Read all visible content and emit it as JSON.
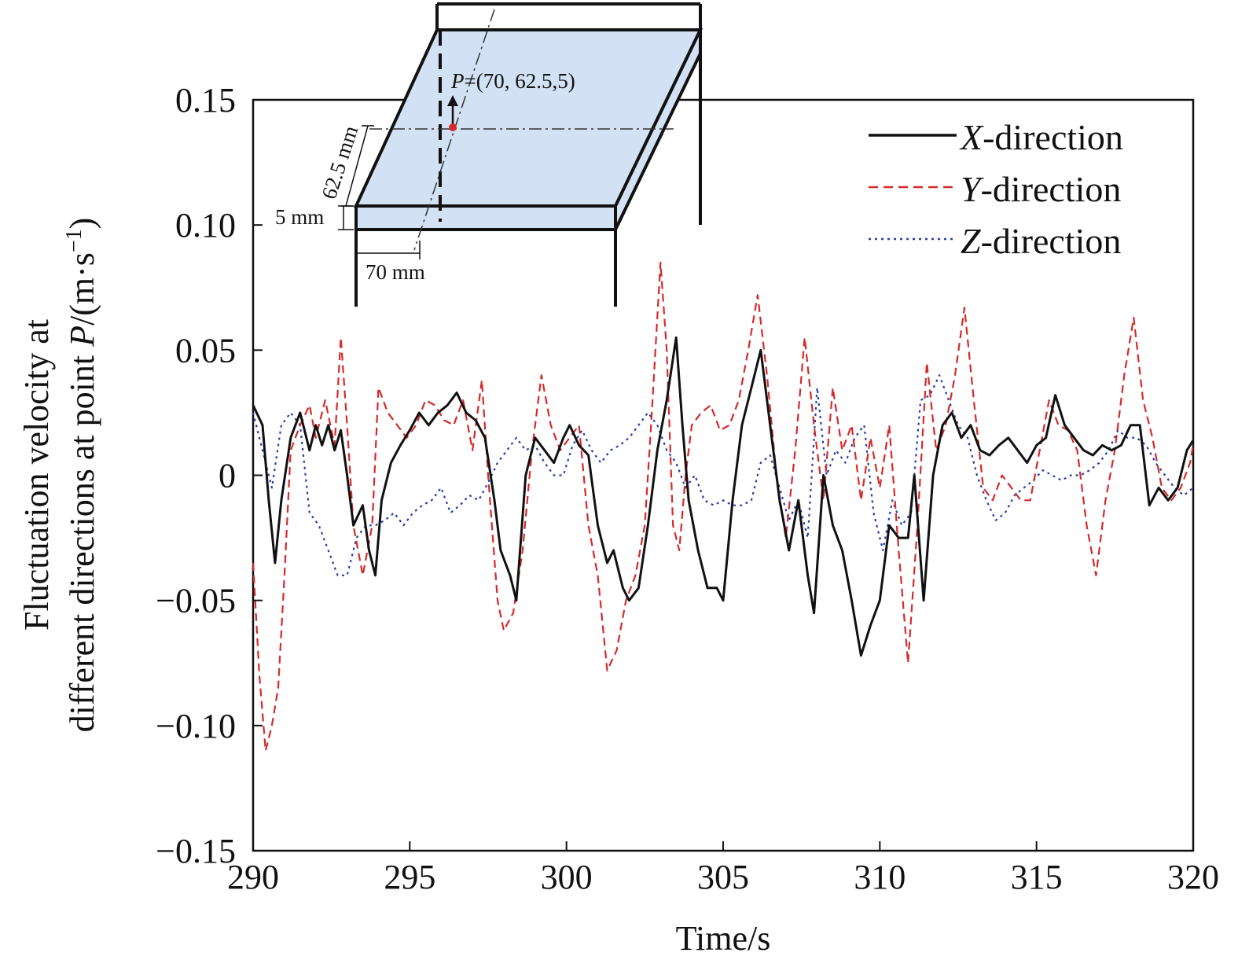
{
  "chart_data": {
    "type": "line",
    "title": "",
    "xlabel": "Time/s",
    "ylabel_line1": "Fluctuation velocity at",
    "ylabel_line2_prefix": "different directions at point ",
    "ylabel_line2_var": "P",
    "ylabel_line2_unit": "/(m·s",
    "ylabel_line2_exp": "−1",
    "ylabel_line2_close": ")",
    "xlim": [
      290,
      320
    ],
    "ylim": [
      -0.15,
      0.15
    ],
    "xticks": [
      290,
      295,
      300,
      305,
      310,
      315,
      320
    ],
    "yticks": [
      -0.15,
      -0.1,
      -0.05,
      0,
      0.05,
      0.1,
      0.15
    ],
    "ytick_labels": [
      "−0.15",
      "−0.10",
      "−0.05",
      "0",
      "0.05",
      "0.10",
      "0.15"
    ],
    "grid": false,
    "legend_position": "top-right",
    "series": [
      {
        "name_var": "X",
        "name_rest": "-direction",
        "color": "#111111",
        "style": "solid",
        "x": [
          290.0,
          290.3,
          290.5,
          290.7,
          290.9,
          291.2,
          291.5,
          291.8,
          292.0,
          292.2,
          292.4,
          292.6,
          292.8,
          293.0,
          293.2,
          293.5,
          293.7,
          293.9,
          294.1,
          294.4,
          294.7,
          295.0,
          295.3,
          295.6,
          295.9,
          296.2,
          296.5,
          296.8,
          297.1,
          297.4,
          297.7,
          297.9,
          298.2,
          298.4,
          298.7,
          299.0,
          299.3,
          299.6,
          299.9,
          300.1,
          300.4,
          300.7,
          301.0,
          301.3,
          301.5,
          301.8,
          302.0,
          302.3,
          302.6,
          302.9,
          303.2,
          303.5,
          303.7,
          303.9,
          304.2,
          304.5,
          304.8,
          305.0,
          305.3,
          305.6,
          305.9,
          306.2,
          306.5,
          306.8,
          307.1,
          307.4,
          307.7,
          307.9,
          308.2,
          308.5,
          308.8,
          309.1,
          309.4,
          309.7,
          310.0,
          310.3,
          310.6,
          310.9,
          311.1,
          311.4,
          311.7,
          312.0,
          312.3,
          312.6,
          312.9,
          313.2,
          313.5,
          313.8,
          314.1,
          314.4,
          314.7,
          315.0,
          315.3,
          315.6,
          315.9,
          316.2,
          316.5,
          316.8,
          317.1,
          317.4,
          317.7,
          318.0,
          318.3,
          318.6,
          318.9,
          319.2,
          319.5,
          319.8,
          320.0
        ],
        "y": [
          0.028,
          0.02,
          -0.01,
          -0.035,
          -0.01,
          0.015,
          0.025,
          0.01,
          0.02,
          0.012,
          0.02,
          0.01,
          0.018,
          0.0,
          -0.02,
          -0.012,
          -0.03,
          -0.04,
          -0.01,
          0.005,
          0.012,
          0.018,
          0.025,
          0.02,
          0.025,
          0.028,
          0.033,
          0.025,
          0.022,
          0.015,
          -0.01,
          -0.03,
          -0.04,
          -0.05,
          0.0,
          0.015,
          0.01,
          0.005,
          0.015,
          0.02,
          0.012,
          0.008,
          -0.02,
          -0.035,
          -0.03,
          -0.045,
          -0.05,
          -0.045,
          -0.02,
          0.01,
          0.03,
          0.055,
          0.02,
          -0.01,
          -0.03,
          -0.045,
          -0.045,
          -0.05,
          -0.01,
          0.02,
          0.035,
          0.05,
          0.02,
          -0.01,
          -0.03,
          -0.01,
          -0.04,
          -0.055,
          0.0,
          -0.02,
          -0.03,
          -0.05,
          -0.072,
          -0.06,
          -0.05,
          -0.02,
          -0.025,
          -0.025,
          0.0,
          -0.05,
          0.0,
          0.02,
          0.025,
          0.015,
          0.02,
          0.01,
          0.008,
          0.012,
          0.015,
          0.01,
          0.005,
          0.012,
          0.015,
          0.032,
          0.02,
          0.015,
          0.01,
          0.008,
          0.012,
          0.01,
          0.012,
          0.02,
          0.02,
          -0.012,
          -0.005,
          -0.01,
          -0.005,
          0.01,
          0.014
        ]
      },
      {
        "name_var": "Y",
        "name_rest": "-direction",
        "color": "#d62a2a",
        "style": "dashed",
        "x": [
          290.0,
          290.2,
          290.4,
          290.6,
          290.8,
          291.0,
          291.2,
          291.5,
          291.8,
          292.0,
          292.3,
          292.6,
          292.8,
          293.0,
          293.2,
          293.5,
          293.8,
          294.0,
          294.3,
          294.6,
          294.9,
          295.2,
          295.5,
          295.8,
          296.1,
          296.4,
          296.7,
          297.0,
          297.3,
          297.5,
          297.8,
          298.0,
          298.3,
          298.6,
          298.9,
          299.2,
          299.5,
          299.8,
          300.1,
          300.4,
          300.7,
          301.0,
          301.3,
          301.6,
          301.9,
          302.2,
          302.5,
          302.7,
          303.0,
          303.2,
          303.4,
          303.6,
          303.8,
          304.0,
          304.3,
          304.6,
          304.9,
          305.2,
          305.5,
          305.8,
          306.1,
          306.4,
          306.7,
          307.0,
          307.3,
          307.6,
          307.9,
          308.2,
          308.5,
          308.8,
          309.1,
          309.4,
          309.7,
          310.0,
          310.3,
          310.6,
          310.9,
          311.2,
          311.5,
          311.8,
          312.1,
          312.4,
          312.7,
          313.0,
          313.3,
          313.6,
          313.9,
          314.2,
          314.5,
          314.8,
          315.1,
          315.4,
          315.7,
          316.0,
          316.3,
          316.6,
          316.9,
          317.2,
          317.5,
          317.8,
          318.1,
          318.4,
          318.7,
          319.0,
          319.3,
          319.6,
          319.9,
          320.0
        ],
        "y": [
          -0.035,
          -0.08,
          -0.11,
          -0.1,
          -0.085,
          -0.04,
          0.01,
          0.02,
          0.028,
          0.015,
          0.03,
          0.012,
          0.055,
          0.02,
          -0.02,
          -0.04,
          -0.02,
          0.035,
          0.025,
          0.02,
          0.015,
          0.02,
          0.03,
          0.028,
          0.022,
          0.02,
          0.03,
          0.01,
          0.038,
          0.0,
          -0.05,
          -0.062,
          -0.055,
          -0.03,
          0.01,
          0.04,
          0.02,
          0.01,
          0.015,
          0.02,
          -0.02,
          -0.04,
          -0.078,
          -0.07,
          -0.05,
          -0.04,
          -0.02,
          0.02,
          0.085,
          0.05,
          -0.02,
          -0.03,
          0.0,
          0.02,
          0.025,
          0.028,
          0.018,
          0.02,
          0.03,
          0.05,
          0.072,
          0.04,
          0.0,
          -0.025,
          0.01,
          0.055,
          0.02,
          -0.01,
          0.035,
          0.01,
          0.02,
          -0.01,
          0.015,
          -0.005,
          0.02,
          -0.03,
          -0.075,
          -0.02,
          0.045,
          0.01,
          0.02,
          0.04,
          0.067,
          0.03,
          -0.005,
          -0.01,
          0.0,
          -0.005,
          -0.01,
          -0.01,
          0.01,
          0.03,
          0.02,
          0.018,
          0.01,
          -0.02,
          -0.04,
          -0.01,
          0.01,
          0.04,
          0.063,
          0.03,
          0.015,
          -0.005,
          -0.01,
          -0.005,
          0.005,
          0.012
        ]
      },
      {
        "name_var": "Z",
        "name_rest": "-direction",
        "color": "#2a3fa8",
        "style": "dotted",
        "x": [
          290.0,
          290.3,
          290.6,
          290.9,
          291.2,
          291.5,
          291.8,
          292.1,
          292.4,
          292.7,
          293.0,
          293.3,
          293.6,
          293.9,
          294.2,
          294.5,
          294.8,
          295.1,
          295.4,
          295.7,
          296.0,
          296.3,
          296.6,
          296.9,
          297.2,
          297.5,
          297.8,
          298.1,
          298.4,
          298.7,
          299.0,
          299.3,
          299.6,
          299.9,
          300.2,
          300.5,
          300.8,
          301.1,
          301.4,
          301.7,
          302.0,
          302.3,
          302.6,
          302.9,
          303.2,
          303.5,
          303.8,
          304.1,
          304.4,
          304.7,
          305.0,
          305.3,
          305.6,
          305.9,
          306.2,
          306.5,
          306.8,
          307.1,
          307.4,
          307.7,
          308.0,
          308.3,
          308.6,
          308.9,
          309.2,
          309.5,
          309.8,
          310.1,
          310.4,
          310.7,
          311.0,
          311.3,
          311.6,
          311.9,
          312.2,
          312.5,
          312.8,
          313.1,
          313.4,
          313.7,
          314.0,
          314.3,
          314.6,
          314.9,
          315.2,
          315.5,
          315.8,
          316.1,
          316.4,
          316.7,
          317.0,
          317.3,
          317.6,
          317.9,
          318.2,
          318.5,
          318.8,
          319.1,
          319.4,
          319.7,
          320.0
        ],
        "y": [
          0.025,
          0.01,
          -0.005,
          0.02,
          0.025,
          0.02,
          -0.015,
          -0.02,
          -0.03,
          -0.04,
          -0.04,
          -0.025,
          -0.02,
          -0.02,
          -0.018,
          -0.015,
          -0.02,
          -0.015,
          -0.012,
          -0.01,
          -0.005,
          -0.015,
          -0.012,
          -0.008,
          -0.01,
          -0.003,
          0.005,
          0.01,
          0.015,
          0.01,
          0.012,
          0.005,
          0.0,
          0.0,
          0.012,
          0.018,
          0.01,
          0.005,
          0.01,
          0.012,
          0.015,
          0.02,
          0.025,
          0.02,
          0.01,
          0.005,
          -0.005,
          0.0,
          -0.01,
          -0.012,
          -0.01,
          -0.012,
          -0.012,
          -0.01,
          0.005,
          0.008,
          -0.005,
          -0.018,
          -0.01,
          -0.025,
          0.035,
          0.0,
          0.01,
          0.005,
          0.015,
          0.02,
          -0.015,
          -0.03,
          -0.01,
          -0.02,
          -0.015,
          0.03,
          0.032,
          0.04,
          0.03,
          0.02,
          0.015,
          0.0,
          -0.01,
          -0.018,
          -0.015,
          -0.008,
          -0.005,
          -0.002,
          0.002,
          0.0,
          -0.002,
          0.0,
          0.0,
          0.002,
          0.005,
          0.01,
          0.018,
          0.015,
          0.015,
          0.012,
          0.005,
          0.0,
          -0.005,
          -0.008,
          -0.005
        ]
      }
    ],
    "inset": {
      "point_label_var": "P",
      "point_label_rest": "=(70, 62.5,5)",
      "dim_62": "62.5 mm",
      "dim_5": "5 mm",
      "dim_70": "70 mm",
      "fill_color": "#d2e1f4"
    }
  }
}
